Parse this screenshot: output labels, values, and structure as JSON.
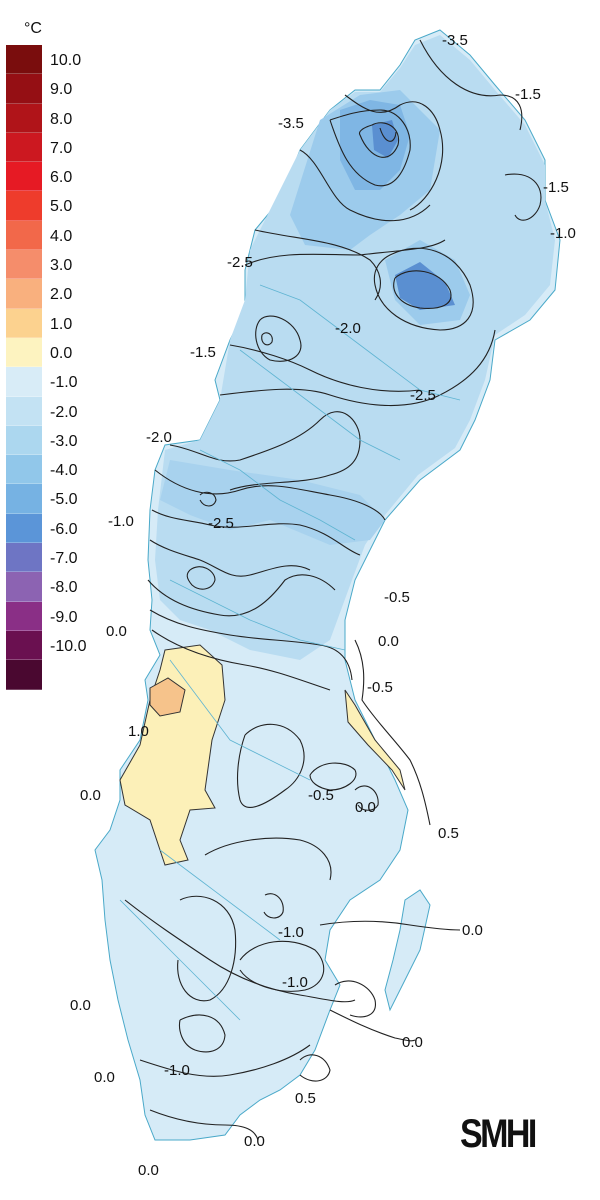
{
  "legend": {
    "unit": "°C",
    "items": [
      {
        "label": "10.0",
        "color": "#7a0d0d"
      },
      {
        "label": "9.0",
        "color": "#950f14"
      },
      {
        "label": "8.0",
        "color": "#b01419"
      },
      {
        "label": "7.0",
        "color": "#cc1820"
      },
      {
        "label": "6.0",
        "color": "#e61a24"
      },
      {
        "label": "5.0",
        "color": "#ee3c2c"
      },
      {
        "label": "4.0",
        "color": "#f2684a"
      },
      {
        "label": "3.0",
        "color": "#f58d6b"
      },
      {
        "label": "2.0",
        "color": "#f9b07e"
      },
      {
        "label": "1.0",
        "color": "#fcd28f"
      },
      {
        "label": "0.0",
        "color": "#fdf3c0"
      },
      {
        "label": "-1.0",
        "color": "#d8ecf7"
      },
      {
        "label": "-2.0",
        "color": "#c3e2f3"
      },
      {
        "label": "-3.0",
        "color": "#acd7ef"
      },
      {
        "label": "-4.0",
        "color": "#91c7ea"
      },
      {
        "label": "-5.0",
        "color": "#76b2e3"
      },
      {
        "label": "-6.0",
        "color": "#5b95d8"
      },
      {
        "label": "-7.0",
        "color": "#6e75c4"
      },
      {
        "label": "-8.0",
        "color": "#8c63b2"
      },
      {
        "label": "-9.0",
        "color": "#8a2f86"
      },
      {
        "label": "-10.0",
        "color": "#6a1050"
      },
      {
        "label": "",
        "color": "#4a0830"
      }
    ]
  },
  "contour_labels": [
    "-3.5",
    "-1.5",
    "-3.5",
    "-1.5",
    "-1.0",
    "-2.5",
    "-2.0",
    "-1.5",
    "-2.5",
    "-2.0",
    "-1.0",
    "-2.5",
    "-0.5",
    "0.0",
    "0.0",
    "-0.5",
    "1.0",
    "0.0",
    "-0.5",
    "0.0",
    "0.5",
    "-1.0",
    "-1.0",
    "0.0",
    "0.0",
    "0.0",
    "-1.0",
    "0.0",
    "0.5",
    "0.0",
    "0.0"
  ],
  "logo_text": "SMHI"
}
